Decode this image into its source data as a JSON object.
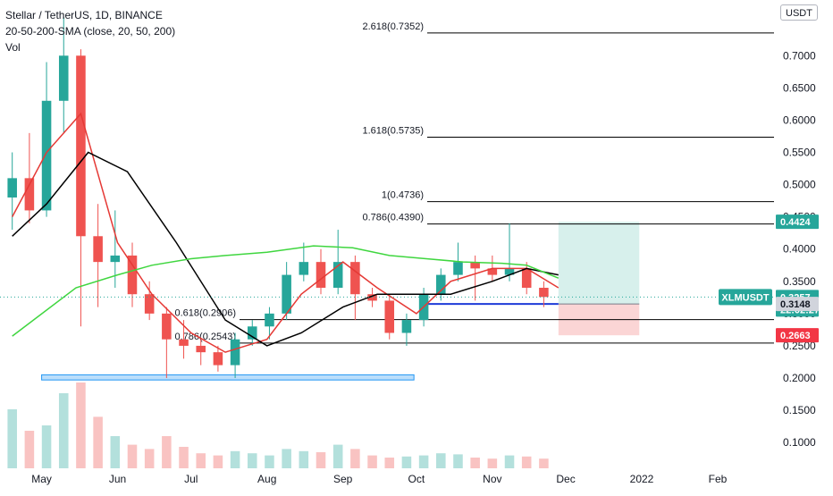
{
  "legend": {
    "symbol": "Stellar / TetherUS, 1D, BINANCE",
    "indicator": "20-50-200-SMA (close, 20, 50, 200)",
    "volume": "Vol"
  },
  "currency_button": "USDT",
  "colors": {
    "up": "#26a69a",
    "down": "#ef5350",
    "sma20": "#e53935",
    "sma50": "#000000",
    "sma200": "#3fd63f",
    "fib": "#000000",
    "support_box": "#2196f3",
    "trend_line": "#1e3bd8",
    "target_zone": "#d7f0ec",
    "stop_zone": "#fbd5d5",
    "last_price": "#26a69a",
    "stop_label": "#f23645",
    "target_label": "#26a69a"
  },
  "chart_data": {
    "type": "candlestick",
    "title": "Stellar / TetherUS, 1D, BINANCE",
    "series": [
      {
        "name": "20-50-200-SMA (close, 20, 50, 200)",
        "kind": "candles",
        "points": [
          [
            "2021-04-19",
            0.48,
            0.55,
            0.43,
            0.51
          ],
          [
            "2021-04-26",
            0.51,
            0.58,
            0.44,
            0.46
          ],
          [
            "2021-05-03",
            0.46,
            0.69,
            0.45,
            0.63
          ],
          [
            "2021-05-10",
            0.63,
            0.76,
            0.58,
            0.7
          ],
          [
            "2021-05-17",
            0.7,
            0.71,
            0.28,
            0.42
          ],
          [
            "2021-05-24",
            0.42,
            0.47,
            0.31,
            0.38
          ],
          [
            "2021-05-31",
            0.38,
            0.46,
            0.34,
            0.39
          ],
          [
            "2021-06-07",
            0.39,
            0.41,
            0.31,
            0.33
          ],
          [
            "2021-06-14",
            0.33,
            0.35,
            0.29,
            0.3
          ],
          [
            "2021-06-21",
            0.3,
            0.31,
            0.2,
            0.26
          ],
          [
            "2021-06-28",
            0.26,
            0.29,
            0.23,
            0.25
          ],
          [
            "2021-07-05",
            0.25,
            0.26,
            0.22,
            0.24
          ],
          [
            "2021-07-12",
            0.24,
            0.25,
            0.21,
            0.22
          ],
          [
            "2021-07-19",
            0.22,
            0.27,
            0.2,
            0.26
          ],
          [
            "2021-07-26",
            0.26,
            0.29,
            0.25,
            0.28
          ],
          [
            "2021-08-02",
            0.28,
            0.31,
            0.26,
            0.3
          ],
          [
            "2021-08-09",
            0.3,
            0.38,
            0.29,
            0.36
          ],
          [
            "2021-08-16",
            0.36,
            0.41,
            0.35,
            0.38
          ],
          [
            "2021-08-23",
            0.38,
            0.4,
            0.33,
            0.34
          ],
          [
            "2021-08-30",
            0.34,
            0.43,
            0.33,
            0.38
          ],
          [
            "2021-09-06",
            0.38,
            0.39,
            0.29,
            0.33
          ],
          [
            "2021-09-13",
            0.33,
            0.34,
            0.31,
            0.32
          ],
          [
            "2021-09-20",
            0.32,
            0.33,
            0.26,
            0.27
          ],
          [
            "2021-09-27",
            0.27,
            0.3,
            0.25,
            0.29
          ],
          [
            "2021-10-04",
            0.29,
            0.34,
            0.28,
            0.33
          ],
          [
            "2021-10-11",
            0.33,
            0.37,
            0.32,
            0.36
          ],
          [
            "2021-10-18",
            0.36,
            0.41,
            0.35,
            0.38
          ],
          [
            "2021-10-25",
            0.38,
            0.39,
            0.32,
            0.37
          ],
          [
            "2021-11-01",
            0.37,
            0.39,
            0.35,
            0.36
          ],
          [
            "2021-11-08",
            0.36,
            0.44,
            0.35,
            0.37
          ],
          [
            "2021-11-15",
            0.37,
            0.38,
            0.33,
            0.34
          ],
          [
            "2021-11-22",
            0.34,
            0.35,
            0.31,
            0.3257
          ]
        ]
      },
      {
        "name": "SMA 20",
        "kind": "line",
        "x": [
          "2021-04-19",
          "2021-05-03",
          "2021-05-17",
          "2021-06-01",
          "2021-06-15",
          "2021-07-01",
          "2021-07-15",
          "2021-08-01",
          "2021-08-15",
          "2021-09-01",
          "2021-09-15",
          "2021-10-01",
          "2021-10-15",
          "2021-11-01",
          "2021-11-15",
          "2021-11-28"
        ],
        "y": [
          0.45,
          0.55,
          0.61,
          0.41,
          0.33,
          0.27,
          0.24,
          0.26,
          0.33,
          0.38,
          0.34,
          0.3,
          0.35,
          0.37,
          0.37,
          0.34
        ]
      },
      {
        "name": "SMA 50",
        "kind": "line",
        "x": [
          "2021-04-19",
          "2021-05-03",
          "2021-05-20",
          "2021-06-05",
          "2021-06-25",
          "2021-07-15",
          "2021-08-01",
          "2021-08-15",
          "2021-09-01",
          "2021-09-15",
          "2021-10-01",
          "2021-10-15",
          "2021-11-01",
          "2021-11-15",
          "2021-11-28"
        ],
        "y": [
          0.42,
          0.47,
          0.55,
          0.52,
          0.41,
          0.29,
          0.25,
          0.27,
          0.31,
          0.33,
          0.33,
          0.33,
          0.35,
          0.37,
          0.36
        ]
      },
      {
        "name": "SMA 200",
        "kind": "line",
        "x": [
          "2021-04-19",
          "2021-05-15",
          "2021-06-01",
          "2021-06-15",
          "2021-07-01",
          "2021-07-15",
          "2021-08-01",
          "2021-08-20",
          "2021-09-05",
          "2021-09-20",
          "2021-10-05",
          "2021-10-20",
          "2021-11-05",
          "2021-11-15",
          "2021-11-28"
        ],
        "y": [
          0.265,
          0.34,
          0.36,
          0.375,
          0.385,
          0.39,
          0.395,
          0.405,
          0.402,
          0.39,
          0.385,
          0.38,
          0.378,
          0.375,
          0.355
        ]
      }
    ],
    "volume": [
      55,
      35,
      40,
      70,
      80,
      48,
      30,
      22,
      18,
      30,
      20,
      14,
      12,
      16,
      14,
      12,
      18,
      16,
      15,
      22,
      18,
      12,
      10,
      11,
      12,
      14,
      13,
      10,
      9,
      12,
      11,
      9
    ],
    "fib_levels": [
      {
        "label": "2.618(0.7352)",
        "value": 0.7352
      },
      {
        "label": "1.618(0.5735)",
        "value": 0.5735
      },
      {
        "label": "1(0.4736)",
        "value": 0.4736
      },
      {
        "label": "0.786(0.4390)",
        "value": 0.439
      },
      {
        "label": "0.618(0.2906)",
        "value": 0.2906
      },
      {
        "label": "0.786(0.2543)",
        "value": 0.2543
      }
    ],
    "support_zone": {
      "from": "2021-05-01",
      "to": "2021-09-30",
      "low": 0.197,
      "high": 0.205
    },
    "trend_line": {
      "from": "2021-10-05",
      "to": "2021-11-28",
      "value": 0.3148
    },
    "position": {
      "from": "2021-11-28",
      "to": "2021-12-31",
      "entry": 0.3148,
      "target": 0.4424,
      "stop": 0.2663
    },
    "price_labels": {
      "last_symbol": "XLMUSDT",
      "last_price": "0.3257",
      "countdown": "22:02:27",
      "target": "0.4424",
      "entry": "0.3148",
      "stop": "0.2663"
    },
    "y_axis": {
      "range": [
        0.06,
        0.76
      ],
      "ticks": [
        "0.7000",
        "0.6500",
        "0.6000",
        "0.5500",
        "0.5000",
        "0.4500",
        "0.4000",
        "0.3500",
        "0.3000",
        "0.2500",
        "0.2000",
        "0.1500",
        "0.1000"
      ],
      "top_label": "0"
    },
    "x_axis": {
      "range": [
        "2021-04-14",
        "2022-02-24"
      ],
      "ticks": [
        {
          "label": "May",
          "date": "2021-05-01"
        },
        {
          "label": "Jun",
          "date": "2021-06-01"
        },
        {
          "label": "Jul",
          "date": "2021-07-01"
        },
        {
          "label": "Aug",
          "date": "2021-08-01"
        },
        {
          "label": "Sep",
          "date": "2021-09-01"
        },
        {
          "label": "Oct",
          "date": "2021-10-01"
        },
        {
          "label": "Nov",
          "date": "2021-11-01"
        },
        {
          "label": "Dec",
          "date": "2021-12-01"
        },
        {
          "label": "2022",
          "date": "2022-01-01"
        },
        {
          "label": "Feb",
          "date": "2022-02-01"
        }
      ]
    },
    "grid": false
  }
}
